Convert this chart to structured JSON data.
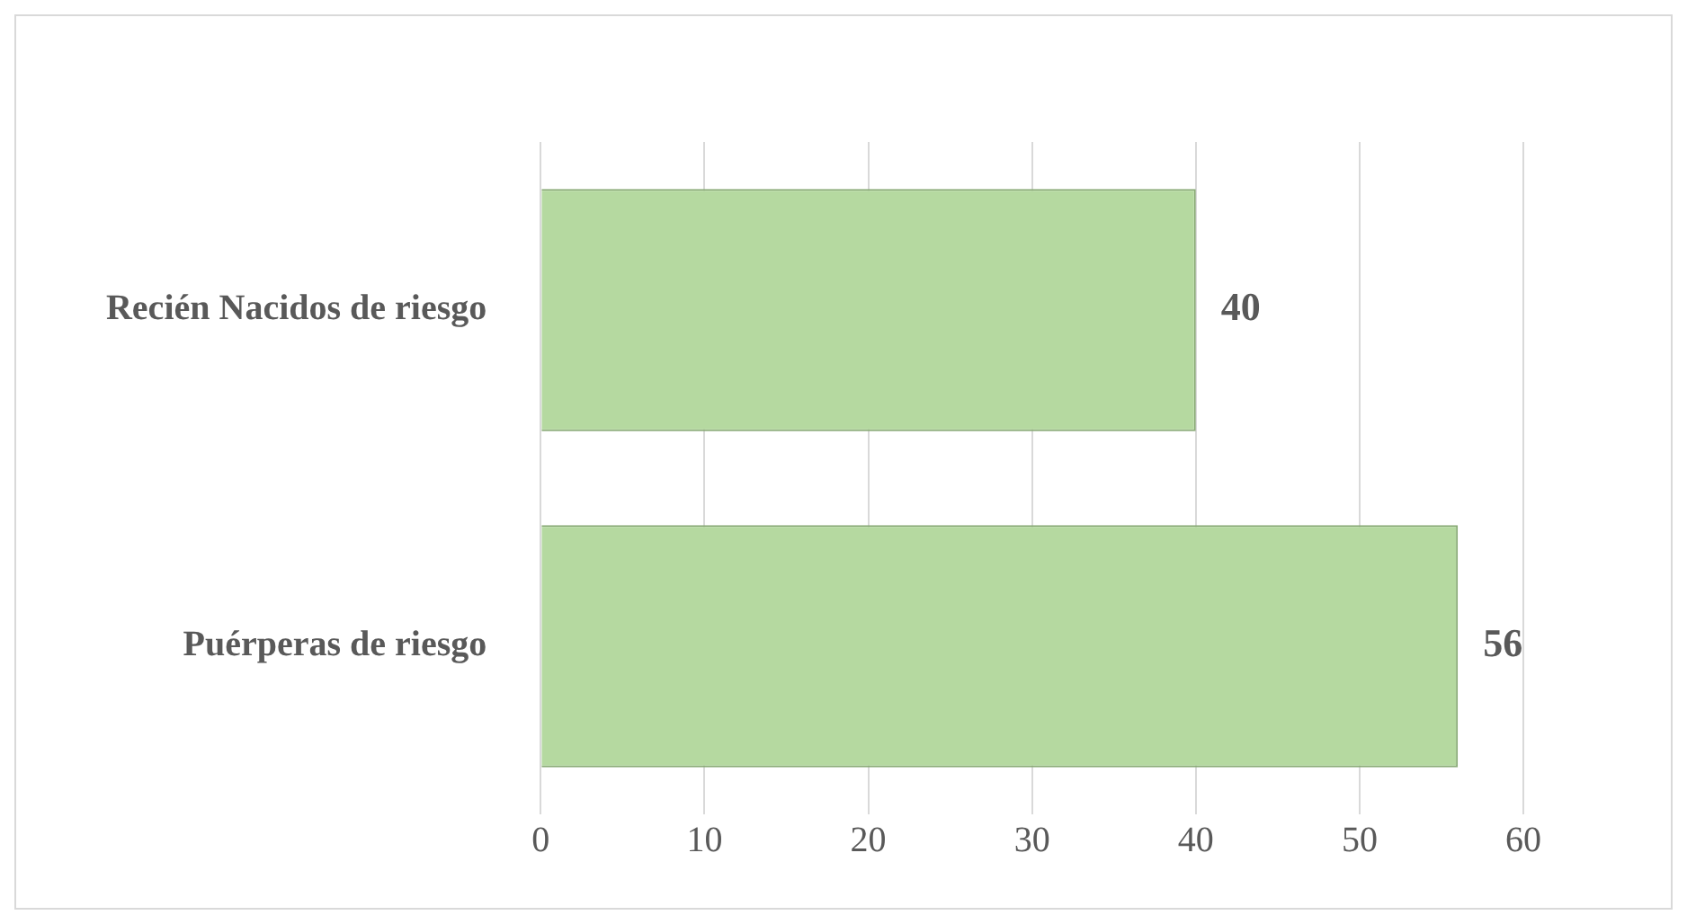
{
  "chart_data": {
    "type": "bar",
    "orientation": "horizontal",
    "categories": [
      "Recién Nacidos de riesgo",
      "Puérperas de riesgo"
    ],
    "values": [
      40,
      56
    ],
    "color": "#b5d9a0",
    "xlim": [
      0,
      60
    ],
    "xticks": [
      0,
      10,
      20,
      30,
      40,
      50,
      60
    ],
    "grid": "x",
    "data_labels": true
  }
}
